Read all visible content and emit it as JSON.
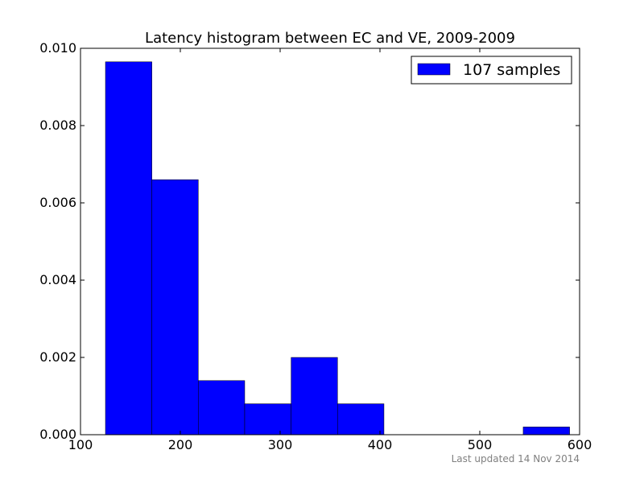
{
  "chart_data": {
    "type": "bar",
    "title": "Latency histogram between EC and VE, 2009-2009",
    "xlabel": "",
    "ylabel": "",
    "xlim": [
      100,
      600
    ],
    "ylim": [
      0,
      0.01
    ],
    "x_ticks": [
      "100",
      "200",
      "300",
      "400",
      "500",
      "600"
    ],
    "y_ticks": [
      "0.000",
      "0.002",
      "0.004",
      "0.006",
      "0.008",
      "0.010"
    ],
    "x_tick_values": [
      100,
      200,
      300,
      400,
      500,
      600
    ],
    "y_tick_values": [
      0,
      0.002,
      0.004,
      0.006,
      0.008,
      0.01
    ],
    "grid": false,
    "legend_position": "top-right",
    "series": [
      {
        "name": "107 samples",
        "color": "#0000ff",
        "bins": [
          {
            "start": 125,
            "end": 171.5,
            "value": 0.00965
          },
          {
            "start": 171.5,
            "end": 218,
            "value": 0.0066
          },
          {
            "start": 218,
            "end": 264.5,
            "value": 0.0014
          },
          {
            "start": 264.5,
            "end": 311,
            "value": 0.0008
          },
          {
            "start": 311,
            "end": 357.5,
            "value": 0.002
          },
          {
            "start": 357.5,
            "end": 404,
            "value": 0.0008
          },
          {
            "start": 404,
            "end": 450.5,
            "value": 0
          },
          {
            "start": 450.5,
            "end": 497,
            "value": 0
          },
          {
            "start": 497,
            "end": 543.5,
            "value": 0
          },
          {
            "start": 543.5,
            "end": 590,
            "value": 0.0002
          }
        ]
      }
    ]
  },
  "footer": {
    "note": "Last updated 14 Nov 2014"
  }
}
